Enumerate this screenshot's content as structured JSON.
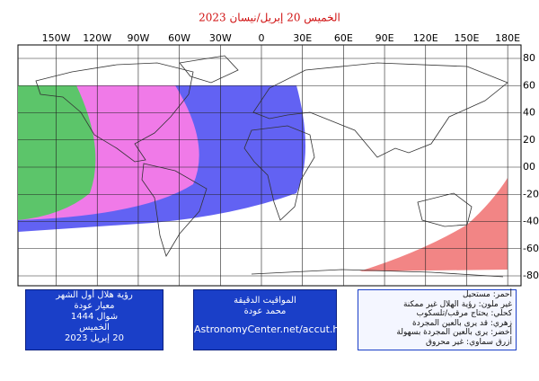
{
  "title": "الخميس 20 إبريل/نيسان 2023",
  "lon_ticks": [
    {
      "value": -150,
      "label": "150W"
    },
    {
      "value": -120,
      "label": "120W"
    },
    {
      "value": -90,
      "label": "90W"
    },
    {
      "value": -60,
      "label": "60W"
    },
    {
      "value": -30,
      "label": "30W"
    },
    {
      "value": 0,
      "label": "0"
    },
    {
      "value": 30,
      "label": "30E"
    },
    {
      "value": 60,
      "label": "60E"
    },
    {
      "value": 90,
      "label": "90E"
    },
    {
      "value": 120,
      "label": "120E"
    },
    {
      "value": 150,
      "label": "150E"
    },
    {
      "value": 180,
      "label": "180E"
    }
  ],
  "lat_ticks": [
    {
      "value": 80,
      "label": "80"
    },
    {
      "value": 60,
      "label": "60"
    },
    {
      "value": 40,
      "label": "40"
    },
    {
      "value": 20,
      "label": "20"
    },
    {
      "value": 0,
      "label": "00"
    },
    {
      "value": -20,
      "label": "-20"
    },
    {
      "value": -40,
      "label": "-40"
    },
    {
      "value": -60,
      "label": "-60"
    },
    {
      "value": -80,
      "label": "-80"
    }
  ],
  "boxes": {
    "left": [
      "رؤية هلال أول الشهر",
      "معيار عودة",
      "شوال 1444",
      "الخميس",
      "20 إبريل 2023"
    ],
    "middle": [
      "المواقيت الدقيقة",
      "محمد عودة",
      "AstronomyCenter.net/accut.html"
    ],
    "right": [
      "أحمر: مستحيل",
      "غير ملون: رؤية الهلال غير ممكنة",
      "كحلي: يحتاج مرقب/تلسكوب",
      "زهري: قد يرى بالعين المجردة",
      "أخضر: يرى بالعين المجردة بسهولة",
      "أزرق سماوي: غير محروق"
    ]
  }
}
